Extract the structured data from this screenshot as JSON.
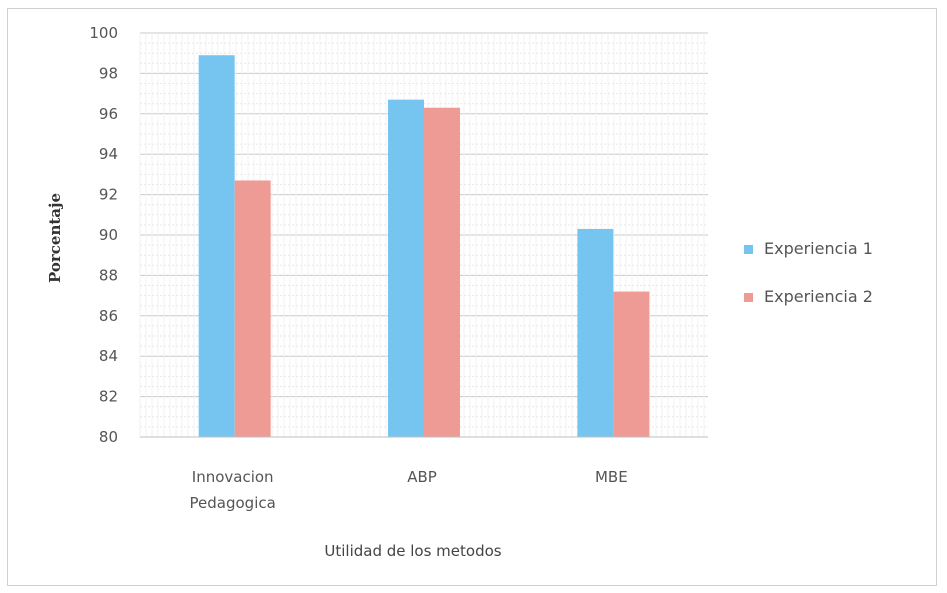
{
  "chart_data": {
    "type": "bar",
    "categories": [
      [
        "Innovacion",
        "Pedagogica"
      ],
      [
        "ABP"
      ],
      [
        "MBE"
      ]
    ],
    "series": [
      {
        "name": "Experiencia 1",
        "values": [
          98.9,
          96.7,
          90.3
        ],
        "color": "#76c5f0"
      },
      {
        "name": "Experiencia 2",
        "values": [
          92.7,
          96.3,
          87.2
        ],
        "color": "#ee9a95"
      }
    ],
    "xlabel": "Utilidad de los metodos",
    "ylabel": "Porcentaje",
    "ylim": [
      80,
      100
    ],
    "yticks": [
      80,
      82,
      84,
      86,
      88,
      90,
      92,
      94,
      96,
      98,
      100
    ],
    "grid": true,
    "legend_position": "right"
  }
}
